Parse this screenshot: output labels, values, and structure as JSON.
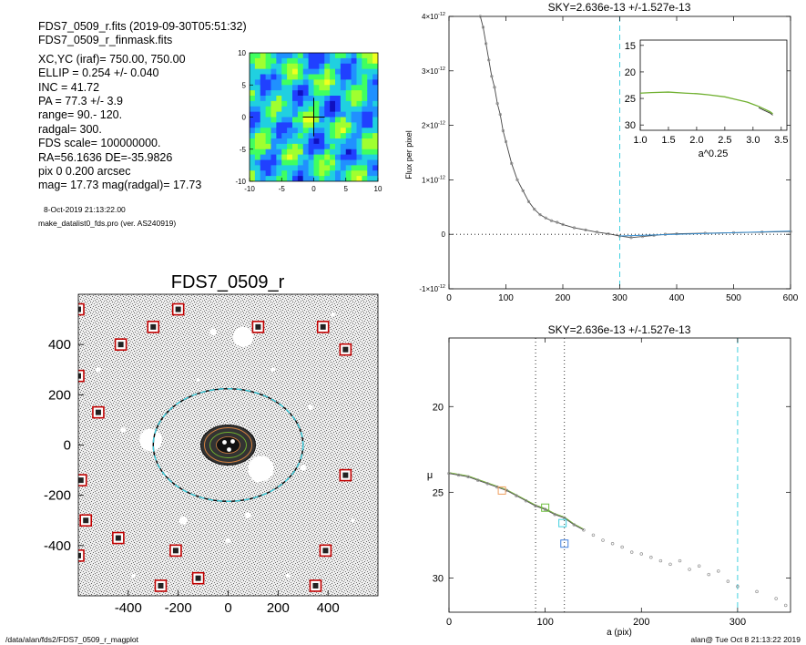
{
  "header": {
    "lines": [
      "FDS7_0509_r.fits  (2019-09-30T05:51:32)",
      "FDS7_0509_r_finmask.fits",
      "XC,YC (iraf)=   750.00, 750.00",
      "ELLIP = 0.254 +/- 0.040",
      "INC   = 41.72",
      "PA    = 77.3 +/-   3.9",
      "range=   90.-  120.",
      "radgal=  300.",
      "FDS scale=  100000000.",
      "RA=56.1636   DE=-35.9826",
      "pix 0 0.200 arcsec",
      "mag=  17.73  mag(radgal)=  17.73"
    ],
    "date": "8-Oct-2019 21:13:22.00",
    "program": "make_datalist0_fds.pro (ver. AS240919)"
  },
  "footer": {
    "path": "/data/alan/fds2/FDS7_0509_r_magplot",
    "stamp": "alan@  Tue Oct  8 21:13:22 2019"
  },
  "colors": {
    "cyan": "#40d0e0",
    "galaxy_ellipse": "#d08040",
    "mask_box": "#c00000",
    "model_green": "#70b030",
    "model_red": "#c04020",
    "points": "#909090"
  },
  "chart_data": [
    {
      "id": "residual_map",
      "type": "heatmap",
      "title": "",
      "x_ticks": [
        "-10",
        "-5",
        "0",
        "5",
        "10"
      ],
      "y_ticks": [
        "10",
        "5",
        "0",
        "-5",
        "-10"
      ],
      "xlim": [
        -10,
        10
      ],
      "ylim": [
        -10,
        10
      ],
      "colormap": [
        "#1010c0",
        "#2040ff",
        "#2090ff",
        "#20d0e0",
        "#40ff60",
        "#a0ff30",
        "#f0ff20"
      ],
      "cross": true
    },
    {
      "id": "image",
      "type": "image",
      "title": "FDS7_0509_r",
      "x_ticks": [
        "-400",
        "-200",
        "0",
        "200",
        "400"
      ],
      "y_ticks": [
        "400",
        "200",
        "0",
        "-200",
        "-400"
      ],
      "xlim": [
        -600,
        600
      ],
      "ylim": [
        -600,
        600
      ],
      "ellipse_outer": {
        "a": 300,
        "b": 224,
        "pa_deg": 77.3
      },
      "mask_boxes": [
        [
          -600,
          540
        ],
        [
          -200,
          540
        ],
        [
          -300,
          470
        ],
        [
          120,
          470
        ],
        [
          380,
          470
        ],
        [
          -430,
          400
        ],
        [
          470,
          380
        ],
        [
          -600,
          275
        ],
        [
          -520,
          130
        ],
        [
          -590,
          -140
        ],
        [
          -570,
          -300
        ],
        [
          -600,
          -440
        ],
        [
          -440,
          -370
        ],
        [
          -210,
          -420
        ],
        [
          -120,
          -530
        ],
        [
          390,
          -420
        ],
        [
          -270,
          -560
        ],
        [
          350,
          -560
        ],
        [
          470,
          -120
        ]
      ]
    },
    {
      "id": "sky_profile",
      "type": "line",
      "title": "SKY=2.636e-13 +/-1.527e-13",
      "xlabel": "",
      "ylabel": "Flux per pixel",
      "xlim": [
        0,
        600
      ],
      "ylim": [
        -1e-12,
        4e-12
      ],
      "x_ticks": [
        "0",
        "100",
        "200",
        "300",
        "400",
        "500",
        "600"
      ],
      "y_ticks": [
        {
          "v": 4e-12,
          "label": "4×10",
          "exp": "-12"
        },
        {
          "v": 3e-12,
          "label": "3×10",
          "exp": "-12"
        },
        {
          "v": 2e-12,
          "label": "2×10",
          "exp": "-12"
        },
        {
          "v": 1e-12,
          "label": "1×10",
          "exp": "-12"
        },
        {
          "v": 0,
          "label": "0",
          "exp": ""
        },
        {
          "v": -1e-12,
          "label": "-1×10",
          "exp": "-12"
        }
      ],
      "vline_x": 300,
      "zero_line": true,
      "series": [
        {
          "values_x": [
            55,
            60,
            65,
            70,
            75,
            80,
            85,
            90,
            95,
            100,
            110,
            120,
            130,
            140,
            150,
            160,
            170,
            180,
            190,
            200,
            220,
            240,
            260,
            280,
            300,
            320,
            340,
            360,
            380,
            400,
            450,
            500,
            550,
            600
          ],
          "values_y": [
            4e-12,
            3.8e-12,
            3.5e-12,
            3.2e-12,
            2.9e-12,
            2.7e-12,
            2.4e-12,
            2.2e-12,
            1.9e-12,
            1.7e-12,
            1.3e-12,
            1e-12,
            8e-13,
            6e-13,
            4.6e-13,
            3.6e-13,
            3e-13,
            2.5e-13,
            2.2e-13,
            1.8e-13,
            1.2e-13,
            8e-14,
            4e-14,
            1e-14,
            -3e-14,
            -6e-14,
            -4e-14,
            -2e-14,
            0,
            1e-14,
            2e-14,
            3e-14,
            4e-14,
            5e-14
          ]
        }
      ]
    },
    {
      "id": "sky_inset",
      "type": "line",
      "title": "",
      "xlabel": "a^0.25",
      "ylabel": "",
      "xlim": [
        1.0,
        3.6
      ],
      "ylim": [
        31,
        14
      ],
      "x_ticks": [
        "1.0",
        "1.5",
        "2.0",
        "2.5",
        "3.0",
        "3.5"
      ],
      "y_ticks": [
        "15",
        "20",
        "25",
        "30"
      ],
      "series": [
        {
          "values_x": [
            1.0,
            1.2,
            1.5,
            1.8,
            2.0,
            2.2,
            2.5,
            2.7,
            2.9,
            3.0,
            3.1,
            3.2,
            3.3,
            3.35
          ],
          "values_y": [
            24.0,
            23.9,
            23.8,
            24.0,
            24.1,
            24.3,
            24.7,
            25.2,
            25.7,
            26.1,
            26.5,
            27.0,
            27.5,
            27.9
          ]
        }
      ]
    },
    {
      "id": "mu_profile",
      "type": "scatter",
      "title": "SKY=2.636e-13 +/-1.527e-13",
      "xlabel": "a (pix)",
      "ylabel": "μ",
      "xlim": [
        0,
        355
      ],
      "ylim": [
        32,
        16
      ],
      "x_ticks": [
        "0",
        "100",
        "200",
        "300"
      ],
      "y_ticks": [
        "20",
        "25",
        "30"
      ],
      "vlines_dotted": [
        90,
        120
      ],
      "vline_dashed_x": 300,
      "series": [
        {
          "name": "",
          "values_x": [
            0,
            10,
            20,
            30,
            40,
            50,
            60,
            70,
            80,
            90,
            100,
            110,
            120,
            130,
            140,
            150,
            160,
            170,
            180,
            190,
            200,
            210,
            220,
            230,
            240,
            250,
            260,
            270,
            280,
            290,
            300,
            320,
            340,
            350
          ],
          "values_y": [
            23.9,
            24.0,
            24.1,
            24.3,
            24.5,
            24.7,
            24.9,
            25.2,
            25.5,
            25.8,
            26.0,
            26.3,
            26.5,
            26.9,
            27.2,
            27.5,
            27.8,
            28.0,
            28.2,
            28.5,
            28.6,
            28.8,
            29.0,
            29.2,
            29.0,
            29.5,
            29.3,
            29.8,
            29.6,
            30.2,
            30.5,
            30.8,
            31.2,
            31.6
          ]
        }
      ],
      "markers": [
        {
          "x": 55,
          "y": 24.9,
          "color": "#f0a060"
        },
        {
          "x": 100,
          "y": 25.9,
          "color": "#70c040"
        },
        {
          "x": 118,
          "y": 26.8,
          "color": "#40d0e0"
        },
        {
          "x": 120,
          "y": 28.0,
          "color": "#4080e0"
        }
      ]
    }
  ]
}
